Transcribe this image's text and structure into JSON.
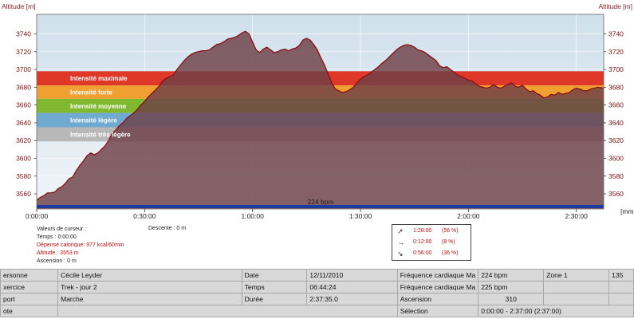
{
  "chart_data": {
    "type": "area",
    "ylabel_left": "Altitude  [m]",
    "ylabel_right": "Altitude  [m]",
    "xlabel": "",
    "ylim": [
      3543,
      3762
    ],
    "y_ticks": [
      3560,
      3580,
      3600,
      3620,
      3640,
      3660,
      3680,
      3700,
      3720,
      3740
    ],
    "x_ticks": [
      "0:00:00",
      "0:30:00",
      "1:00:00",
      "1:30:00",
      "2:00:00",
      "2:30:00"
    ],
    "x_unit_label": "[mm",
    "x_minutes_range": [
      0,
      157.6
    ],
    "intensity_bands": [
      {
        "label": "Intensité maximale",
        "from": 3682,
        "to": 3698,
        "color": "#e03828"
      },
      {
        "label": "Intensité forte",
        "from": 3667,
        "to": 3682,
        "color": "#f0a030"
      },
      {
        "label": "Intensité moyenne",
        "from": 3651,
        "to": 3667,
        "color": "#80b830"
      },
      {
        "label": "Intensité légère",
        "from": 3635,
        "to": 3651,
        "color": "#70aad0"
      },
      {
        "label": "Intensité très légère",
        "from": 3619,
        "to": 3635,
        "color": "#b8b8b8"
      }
    ],
    "heart_rate_line_label": "224 bpm",
    "series": [
      {
        "x_minutes": [
          0,
          1,
          2,
          3,
          4,
          5,
          6,
          7,
          8,
          9,
          10,
          11,
          12,
          13,
          14,
          15,
          16,
          17,
          18,
          19,
          20,
          21,
          22,
          23,
          24,
          25,
          26,
          27,
          28,
          29,
          30,
          31,
          32,
          33,
          34,
          35,
          36,
          37,
          38,
          39,
          40,
          41,
          42,
          43,
          44,
          45,
          46,
          47,
          48,
          49,
          50,
          51,
          52,
          53,
          54,
          55,
          56,
          57,
          58,
          59,
          60,
          61,
          62,
          63,
          64,
          65,
          66,
          67,
          68,
          69,
          70,
          71,
          72,
          73,
          74,
          75,
          76,
          77,
          78,
          79,
          80,
          81,
          82,
          83,
          84,
          85,
          86,
          87,
          88,
          89,
          90,
          91,
          92,
          93,
          94,
          95,
          96,
          97,
          98,
          99,
          100,
          101,
          102,
          103,
          104,
          105,
          106,
          107,
          108,
          109,
          110,
          111,
          112,
          113,
          114,
          115,
          116,
          117,
          118,
          119,
          120,
          121,
          122,
          123,
          124,
          125,
          126,
          127,
          128,
          129,
          130,
          131,
          132,
          133,
          134,
          135,
          136,
          137,
          138,
          139,
          140,
          141,
          142,
          143,
          144,
          145,
          146,
          147,
          148,
          149,
          150,
          151,
          152,
          153,
          154,
          155,
          156,
          157.6
        ],
        "values": [
          3553,
          3556,
          3558,
          3561,
          3561,
          3562,
          3566,
          3568,
          3572,
          3577,
          3579,
          3586,
          3592,
          3597,
          3603,
          3606,
          3604,
          3606,
          3610,
          3614,
          3620,
          3628,
          3632,
          3637,
          3640,
          3645,
          3648,
          3651,
          3655,
          3660,
          3664,
          3669,
          3673,
          3677,
          3681,
          3687,
          3690,
          3692,
          3694,
          3700,
          3705,
          3710,
          3714,
          3717,
          3719,
          3720,
          3721,
          3721,
          3722,
          3725,
          3728,
          3729,
          3731,
          3734,
          3735,
          3736,
          3738,
          3741,
          3743,
          3740,
          3731,
          3722,
          3719,
          3723,
          3725,
          3722,
          3719,
          3720,
          3722,
          3723,
          3721,
          3723,
          3724,
          3727,
          3733,
          3735,
          3733,
          3728,
          3722,
          3713,
          3705,
          3695,
          3685,
          3678,
          3676,
          3674,
          3675,
          3677,
          3680,
          3685,
          3689,
          3692,
          3694,
          3697,
          3700,
          3703,
          3707,
          3710,
          3714,
          3718,
          3722,
          3725,
          3727,
          3728,
          3727,
          3725,
          3722,
          3721,
          3719,
          3716,
          3713,
          3710,
          3704,
          3702,
          3703,
          3700,
          3697,
          3694,
          3692,
          3690,
          3688,
          3687,
          3684,
          3681,
          3680,
          3679,
          3680,
          3683,
          3680,
          3679,
          3681,
          3683,
          3685,
          3681,
          3680,
          3682,
          3678,
          3675,
          3676,
          3673,
          3671,
          3668,
          3669,
          3672,
          3671,
          3674,
          3672,
          3673,
          3674,
          3677,
          3679,
          3678,
          3676,
          3676,
          3678,
          3679,
          3680,
          3679
        ]
      }
    ]
  },
  "cursor_values": {
    "title": "Valeurs de curseur :",
    "temps": "Temps : 0:00:00",
    "calories": "Dépense calorique: 977 kcal/60min",
    "altitude": "Altitude : 3553 m",
    "ascension": "Ascension : 0 m",
    "descente": "Descente : 0 m"
  },
  "slope_stats": [
    {
      "icon": "arrow-up-right-icon",
      "glyph": "↗",
      "time": "1:28:00",
      "pct": "(56 %)"
    },
    {
      "icon": "arrow-right-icon",
      "glyph": "→",
      "time": "0:12:00",
      "pct": "(8 %)"
    },
    {
      "icon": "arrow-down-right-icon",
      "glyph": "↘",
      "time": "0:56:00",
      "pct": "(36 %)"
    }
  ],
  "info": {
    "r1": [
      "ersonne",
      "Cécile Leyder",
      "Date",
      "12/11/2010",
      "Fréquence cardiaque Ma",
      "224 bpm",
      "Zone 1",
      "135"
    ],
    "r2": [
      "xercice",
      "Trek - jour 2",
      "Temps",
      "06:44:24",
      "Fréquence cardiaque Ma",
      "225 bpm",
      "",
      ""
    ],
    "r3": [
      "port",
      "Marche",
      "Durée",
      "2:37:35.0",
      "Ascension",
      "310",
      "",
      ""
    ],
    "r4": [
      "ote",
      "",
      "Sélection",
      "0:00:00 - 2:37:00 (2:37:00)"
    ]
  },
  "colors": {
    "plot_background": "#d3e2ee",
    "area_fill": "#7a4f56",
    "profile_line": "#8a1010",
    "bottom_hr_line": "#1a3aa0",
    "axis_text": "#8b1a1a"
  }
}
